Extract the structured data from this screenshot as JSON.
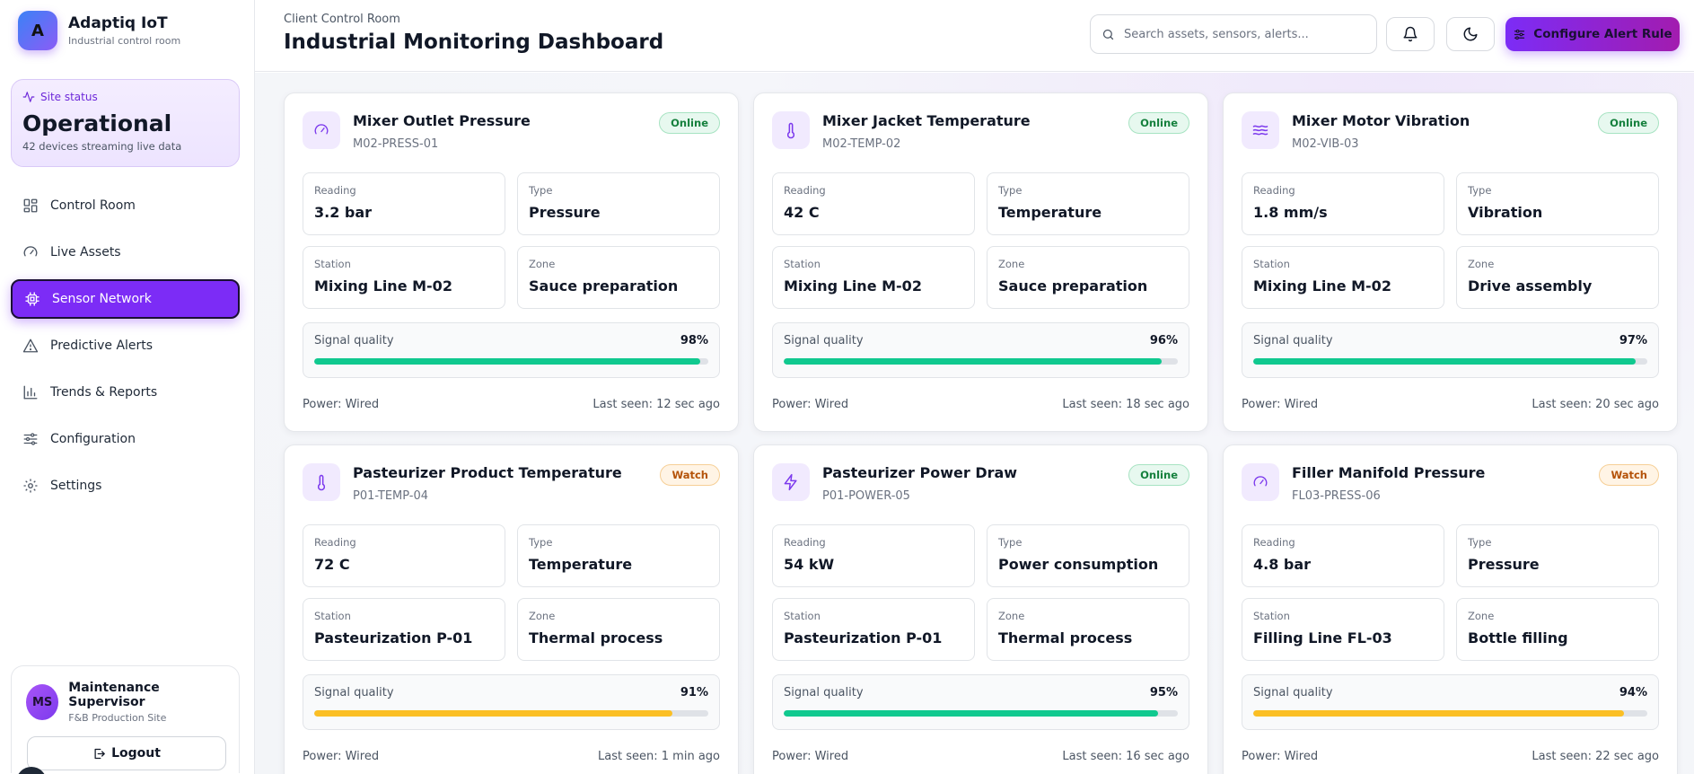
{
  "brand": {
    "logo_letter": "A",
    "name": "Adaptiq IoT",
    "subtitle": "Industrial control room"
  },
  "site_status": {
    "label": "Site status",
    "value": "Operational",
    "detail": "42 devices streaming live data"
  },
  "nav": [
    {
      "key": "control-room",
      "label": "Control Room",
      "icon": "grid-icon",
      "active": false
    },
    {
      "key": "live-assets",
      "label": "Live Assets",
      "icon": "gauge-icon",
      "active": false
    },
    {
      "key": "sensor-network",
      "label": "Sensor Network",
      "icon": "chip-icon",
      "active": true
    },
    {
      "key": "predictive-alerts",
      "label": "Predictive Alerts",
      "icon": "warning-icon",
      "active": false
    },
    {
      "key": "trends-reports",
      "label": "Trends & Reports",
      "icon": "bar-chart-icon",
      "active": false
    },
    {
      "key": "configuration",
      "label": "Configuration",
      "icon": "sliders-icon",
      "active": false
    },
    {
      "key": "settings",
      "label": "Settings",
      "icon": "gear-icon",
      "active": false
    }
  ],
  "user": {
    "initials": "MS",
    "name": "Maintenance Supervisor",
    "site": "F&B Production Site",
    "logout_label": "Logout"
  },
  "header": {
    "crumb": "Client Control Room",
    "title": "Industrial Monitoring Dashboard",
    "search_placeholder": "Search assets, sensors, alerts...",
    "cta_label": "Configure Alert Rule"
  },
  "labels": {
    "reading": "Reading",
    "type": "Type",
    "station": "Station",
    "zone": "Zone",
    "signal": "Signal quality"
  },
  "colors": {
    "accent": "#7c2cf6",
    "good": "#10c98f",
    "warn": "#fbbf24"
  },
  "sensors": [
    {
      "name": "Mixer Outlet Pressure",
      "code": "M02-PRESS-01",
      "icon": "gauge-icon",
      "status": "Online",
      "status_kind": "online",
      "reading": "3.2 bar",
      "type": "Pressure",
      "station": "Mixing Line M-02",
      "zone": "Sauce preparation",
      "signal": 98,
      "signal_text": "98%",
      "power": "Power: Wired",
      "last_seen": "Last seen: 12 sec ago"
    },
    {
      "name": "Mixer Jacket Temperature",
      "code": "M02-TEMP-02",
      "icon": "thermometer-icon",
      "status": "Online",
      "status_kind": "online",
      "reading": "42 C",
      "type": "Temperature",
      "station": "Mixing Line M-02",
      "zone": "Sauce preparation",
      "signal": 96,
      "signal_text": "96%",
      "power": "Power: Wired",
      "last_seen": "Last seen: 18 sec ago"
    },
    {
      "name": "Mixer Motor Vibration",
      "code": "M02-VIB-03",
      "icon": "waves-icon",
      "status": "Online",
      "status_kind": "online",
      "reading": "1.8 mm/s",
      "type": "Vibration",
      "station": "Mixing Line M-02",
      "zone": "Drive assembly",
      "signal": 97,
      "signal_text": "97%",
      "power": "Power: Wired",
      "last_seen": "Last seen: 20 sec ago"
    },
    {
      "name": "Pasteurizer Product Temperature",
      "code": "P01-TEMP-04",
      "icon": "thermometer-icon",
      "status": "Watch",
      "status_kind": "watch",
      "reading": "72 C",
      "type": "Temperature",
      "station": "Pasteurization P-01",
      "zone": "Thermal process",
      "signal": 91,
      "signal_text": "91%",
      "power": "Power: Wired",
      "last_seen": "Last seen: 1 min ago"
    },
    {
      "name": "Pasteurizer Power Draw",
      "code": "P01-POWER-05",
      "icon": "lightning-icon",
      "status": "Online",
      "status_kind": "online",
      "reading": "54 kW",
      "type": "Power consumption",
      "station": "Pasteurization P-01",
      "zone": "Thermal process",
      "signal": 95,
      "signal_text": "95%",
      "power": "Power: Wired",
      "last_seen": "Last seen: 16 sec ago"
    },
    {
      "name": "Filler Manifold Pressure",
      "code": "FL03-PRESS-06",
      "icon": "gauge-icon",
      "status": "Watch",
      "status_kind": "watch",
      "reading": "4.8 bar",
      "type": "Pressure",
      "station": "Filling Line FL-03",
      "zone": "Bottle filling",
      "signal": 94,
      "signal_text": "94%",
      "power": "Power: Wired",
      "last_seen": "Last seen: 22 sec ago"
    }
  ]
}
